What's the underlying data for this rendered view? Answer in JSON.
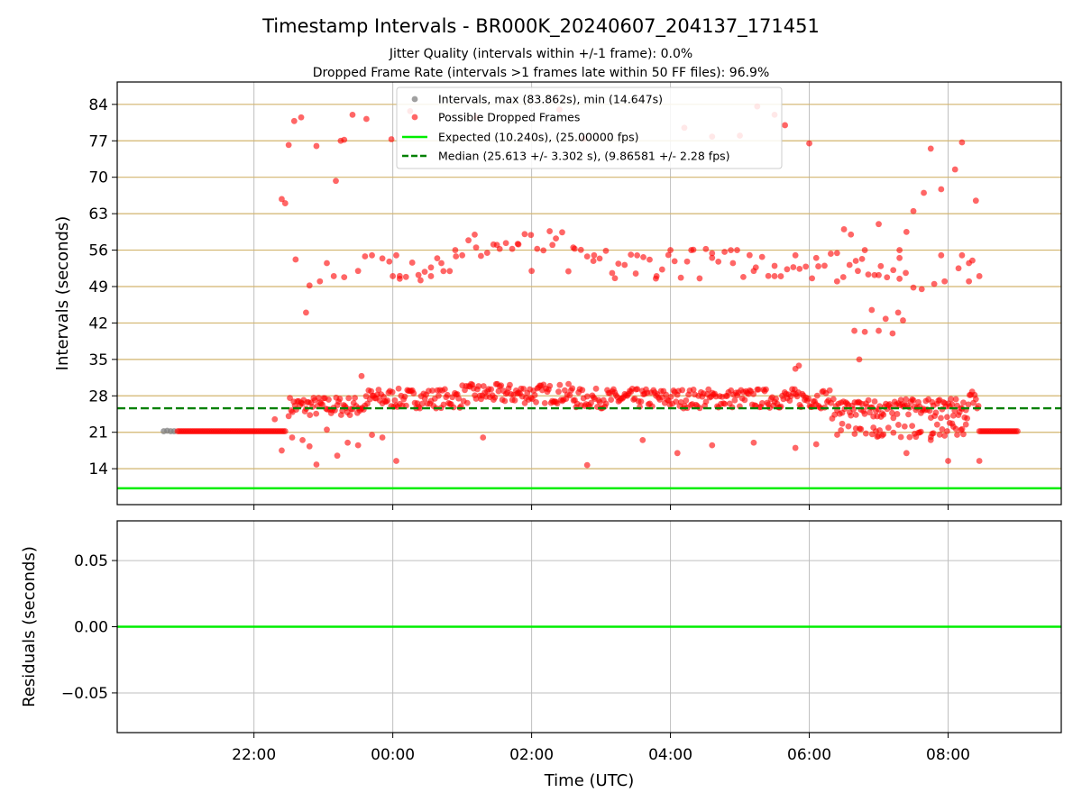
{
  "title": "Timestamp Intervals - BR000K_20240607_204137_171451",
  "subtitle_1": "Jitter Quality (intervals within +/-1 frame): 0.0%",
  "subtitle_2": "Dropped Frame Rate (intervals >1 frames late within 50 FF files): 96.9%",
  "colors": {
    "intervals": "#808080",
    "dropped": "#ff0000",
    "expected": "#00ee00",
    "median": "#008000",
    "ref_lines": "#d2b46e",
    "grid": "#bfbfbf"
  },
  "chart_data": [
    {
      "type": "scatter",
      "panel": "top",
      "ylabel": "Intervals (seconds)",
      "xlabel": "",
      "x_unit": "hours (UTC, continuous from 00:00 of 2024-06-07; 24 = 00:00 next day)",
      "xlim": [
        20.03,
        33.63
      ],
      "ylim": [
        7.1,
        88.3
      ],
      "yticks": [
        14,
        21,
        28,
        35,
        42,
        49,
        56,
        63,
        70,
        77,
        84
      ],
      "ytick_labels": [
        "14",
        "21",
        "28",
        "35",
        "42",
        "49",
        "56",
        "63",
        "70",
        "77",
        "84"
      ],
      "xticks": [
        22,
        24,
        26,
        28,
        30,
        32
      ],
      "xtick_labels": [
        "22:00",
        "00:00",
        "02:00",
        "04:00",
        "06:00",
        "08:00"
      ],
      "grid": true,
      "legend_position": "upper center",
      "legend": [
        "Intervals, max (83.862s), min (14.647s)",
        "Possible Dropped Frames",
        "Expected (10.240s), (25.00000 fps)",
        "Median (25.613 +/- 3.302 s), (9.86581 +/- 2.28 fps)"
      ],
      "expected_line": 10.24,
      "median_line": 25.613,
      "series": [
        {
          "name": "Intervals, max (83.862s), min (14.647s)",
          "color": "#808080",
          "points": [
            [
              20.7,
              21.2
            ],
            [
              20.75,
              21.3
            ],
            [
              20.8,
              21.2
            ],
            [
              20.85,
              21.2
            ]
          ]
        },
        {
          "name": "Possible Dropped Frames",
          "color": "#ff0000",
          "points": [
            [
              20.9,
              21.2
            ],
            [
              22.45,
              21.2
            ],
            [
              32.45,
              21.2
            ],
            [
              33.0,
              21.2
            ],
            [
              22.4,
              65.8
            ],
            [
              22.45,
              65.0
            ],
            [
              22.5,
              76.2
            ],
            [
              22.58,
              80.8
            ],
            [
              22.68,
              81.5
            ],
            [
              22.9,
              76.0
            ],
            [
              24.25,
              82.7
            ],
            [
              23.42,
              82.0
            ],
            [
              23.62,
              81.2
            ],
            [
              23.3,
              77.2
            ],
            [
              23.25,
              77.0
            ],
            [
              23.18,
              69.3
            ],
            [
              22.6,
              54.2
            ],
            [
              22.75,
              44.0
            ],
            [
              22.8,
              49.2
            ],
            [
              22.95,
              50.0
            ],
            [
              23.05,
              53.5
            ],
            [
              23.15,
              51.0
            ],
            [
              23.3,
              50.8
            ],
            [
              23.5,
              52.0
            ],
            [
              23.6,
              54.8
            ],
            [
              23.7,
              55.0
            ],
            [
              23.85,
              54.4
            ],
            [
              23.95,
              53.8
            ],
            [
              24.05,
              55.0
            ],
            [
              23.98,
              77.3
            ],
            [
              24.0,
              51.0
            ],
            [
              24.1,
              50.5
            ],
            [
              24.4,
              50.2
            ],
            [
              24.55,
              51.0
            ],
            [
              24.7,
              53.5
            ],
            [
              24.9,
              56.0
            ],
            [
              25.2,
              56.5
            ],
            [
              25.5,
              57.0
            ],
            [
              25.8,
              57.2
            ],
            [
              26.0,
              52.0
            ],
            [
              26.3,
              57.0
            ],
            [
              26.6,
              56.5
            ],
            [
              26.9,
              55.0
            ],
            [
              27.2,
              50.6
            ],
            [
              27.5,
              51.5
            ],
            [
              27.8,
              51.0
            ],
            [
              28.0,
              56.0
            ],
            [
              28.3,
              56.0
            ],
            [
              28.6,
              55.4
            ],
            [
              28.9,
              53.5
            ],
            [
              29.2,
              52.0
            ],
            [
              29.5,
              51.0
            ],
            [
              29.8,
              55.0
            ],
            [
              30.1,
              54.5
            ],
            [
              30.4,
              50.0
            ],
            [
              30.7,
              52.0
            ],
            [
              31.0,
              51.2
            ],
            [
              31.3,
              50.5
            ],
            [
              26.75,
              77.4
            ],
            [
              26.4,
              83.0
            ],
            [
              25.2,
              81.5
            ],
            [
              28.2,
              79.5
            ],
            [
              28.6,
              77.8
            ],
            [
              29.0,
              78.0
            ],
            [
              29.25,
              83.6
            ],
            [
              29.5,
              82.0
            ],
            [
              29.65,
              80.0
            ],
            [
              30.0,
              76.5
            ],
            [
              30.5,
              60.0
            ],
            [
              30.6,
              59.0
            ],
            [
              30.8,
              56.0
            ],
            [
              31.0,
              61.0
            ],
            [
              31.3,
              56.0
            ],
            [
              31.4,
              59.5
            ],
            [
              31.5,
              63.5
            ],
            [
              31.65,
              67.0
            ],
            [
              31.75,
              75.5
            ],
            [
              31.9,
              67.7
            ],
            [
              32.1,
              71.5
            ],
            [
              32.2,
              76.7
            ],
            [
              32.4,
              65.5
            ],
            [
              32.2,
              55.0
            ],
            [
              32.3,
              53.5
            ],
            [
              32.35,
              54.0
            ],
            [
              32.45,
              51.0
            ],
            [
              30.65,
              40.5
            ],
            [
              30.8,
              40.3
            ],
            [
              30.9,
              44.5
            ],
            [
              31.0,
              40.5
            ],
            [
              31.1,
              42.8
            ],
            [
              31.2,
              40.0
            ],
            [
              31.28,
              44.0
            ],
            [
              31.35,
              42.5
            ],
            [
              31.5,
              48.8
            ],
            [
              31.62,
              48.5
            ],
            [
              31.8,
              49.5
            ],
            [
              31.9,
              55.0
            ],
            [
              31.95,
              50.0
            ],
            [
              32.15,
              52.5
            ],
            [
              32.3,
              50.0
            ],
            [
              30.72,
              35.0
            ],
            [
              23.55,
              31.8
            ],
            [
              29.8,
              33.2
            ],
            [
              29.85,
              33.8
            ],
            [
              22.3,
              23.5
            ],
            [
              22.4,
              17.5
            ],
            [
              22.55,
              20.0
            ],
            [
              22.7,
              19.5
            ],
            [
              22.8,
              18.3
            ],
            [
              22.9,
              14.8
            ],
            [
              23.05,
              21.5
            ],
            [
              23.2,
              16.5
            ],
            [
              23.35,
              19.0
            ],
            [
              23.5,
              18.5
            ],
            [
              23.7,
              20.5
            ],
            [
              23.85,
              20.0
            ],
            [
              24.05,
              15.5
            ],
            [
              25.3,
              20.0
            ],
            [
              26.8,
              14.7
            ],
            [
              27.6,
              19.5
            ],
            [
              28.1,
              17.0
            ],
            [
              28.6,
              18.5
            ],
            [
              29.2,
              19.0
            ],
            [
              29.8,
              18.0
            ],
            [
              30.1,
              18.7
            ],
            [
              31.4,
              17.0
            ],
            [
              31.75,
              19.5
            ],
            [
              32.0,
              15.5
            ],
            [
              32.45,
              15.5
            ]
          ]
        }
      ]
    },
    {
      "type": "line",
      "panel": "bottom",
      "ylabel": "Residuals (seconds)",
      "xlabel": "Time (UTC)",
      "ylim": [
        -0.08,
        0.08
      ],
      "yticks": [
        0.05,
        0.0,
        -0.05
      ],
      "ytick_labels": [
        "0.05",
        "0.00",
        "−0.05"
      ],
      "xticks": [
        22,
        24,
        26,
        28,
        30,
        32
      ],
      "xtick_labels": [
        "22:00",
        "00:00",
        "02:00",
        "04:00",
        "06:00",
        "08:00"
      ],
      "grid": true,
      "series": [
        {
          "color": "#00ee00",
          "x": [
            20.03,
            33.63
          ],
          "y": [
            0,
            0
          ]
        }
      ]
    }
  ]
}
